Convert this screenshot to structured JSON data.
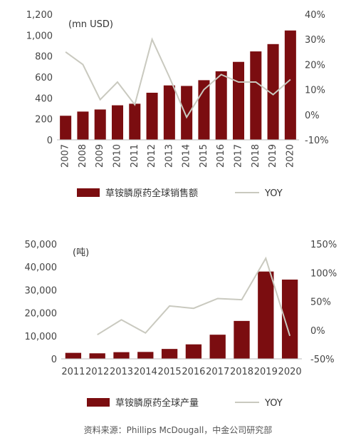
{
  "colors": {
    "bar": "#7b0d10",
    "line": "#c9c9bf"
  },
  "source": "资料来源：Phillips McDougall，中金公司研究部",
  "chart_data": [
    {
      "type": "bar",
      "unit_label": "(mn USD)",
      "categories": [
        "2007",
        "2008",
        "2009",
        "2010",
        "2011",
        "2012",
        "2013",
        "2014",
        "2015",
        "2016",
        "2017",
        "2018",
        "2019",
        "2020"
      ],
      "series": [
        {
          "name": "草铵膦原药全球销售额",
          "type": "bar",
          "axis": "left",
          "values": [
            230,
            270,
            290,
            330,
            345,
            450,
            520,
            515,
            570,
            655,
            745,
            845,
            915,
            1045
          ]
        },
        {
          "name": "YOY",
          "type": "line",
          "axis": "right",
          "values": [
            25,
            20,
            6,
            13,
            4,
            30,
            15,
            -1,
            10,
            16,
            13,
            13,
            8,
            14
          ]
        }
      ],
      "left_ticks": [
        "0",
        "200",
        "400",
        "600",
        "800",
        "1,000",
        "1,200"
      ],
      "left_range": [
        0,
        1200
      ],
      "right_ticks": [
        "-10%",
        "0%",
        "10%",
        "20%",
        "30%",
        "40%"
      ],
      "right_range": [
        -10,
        40
      ],
      "x_tick_rotation": "vertical",
      "legend_position": "bottom"
    },
    {
      "type": "bar",
      "unit_label": "(吨)",
      "categories": [
        "2011",
        "2012",
        "2013",
        "2014",
        "2015",
        "2016",
        "2017",
        "2018",
        "2019",
        "2020"
      ],
      "series": [
        {
          "name": "草铵膦原药全球产量",
          "type": "bar",
          "axis": "left",
          "values": [
            2600,
            2400,
            2900,
            3000,
            4300,
            6300,
            10500,
            16500,
            38000,
            34500
          ]
        },
        {
          "name": "YOY",
          "type": "line",
          "axis": "right",
          "values": [
            null,
            -8,
            18,
            -5,
            42,
            38,
            55,
            53,
            125,
            -10
          ]
        }
      ],
      "left_ticks": [
        "0",
        "10,000",
        "20,000",
        "30,000",
        "40,000",
        "50,000"
      ],
      "left_range": [
        0,
        50000
      ],
      "right_ticks": [
        "-50%",
        "0%",
        "50%",
        "100%",
        "150%"
      ],
      "right_range": [
        -50,
        150
      ],
      "x_tick_rotation": "horizontal",
      "legend_position": "bottom"
    }
  ]
}
